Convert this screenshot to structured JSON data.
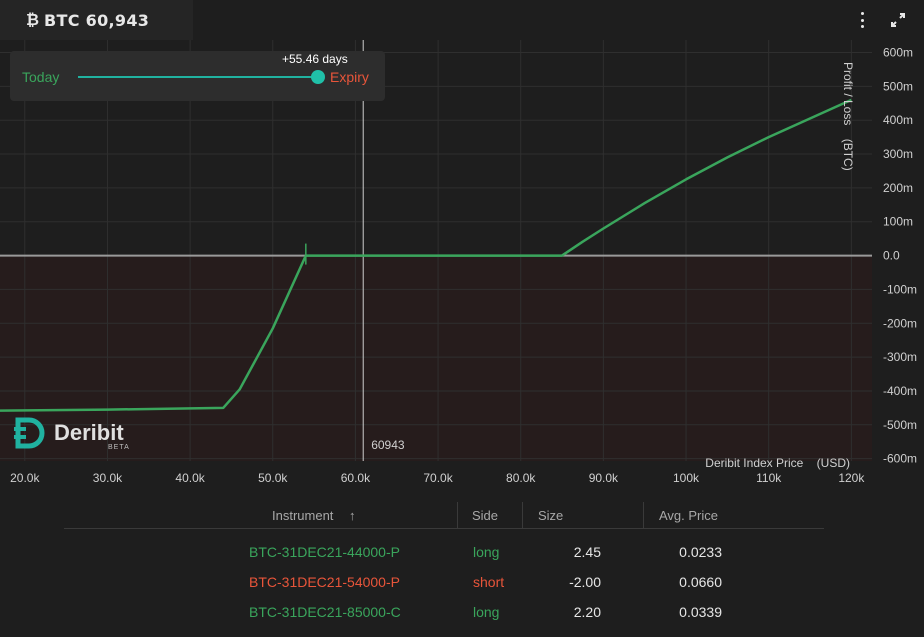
{
  "header": {
    "ticker_icon": "bitcoin-icon",
    "ticker_label": "BTC 60,943"
  },
  "timeline": {
    "left_label": "Today",
    "right_label": "Expiry",
    "days_label": "+55.46 days",
    "position_fraction": 1.0
  },
  "chart_data": {
    "type": "line",
    "title": "",
    "xlabel": "Deribit Index Price    (USD)",
    "ylabel": "Profit / Loss    (BTC)",
    "xlim": [
      17000,
      122500
    ],
    "ylim": [
      -600,
      600
    ],
    "ylim_plot": [
      -607,
      637
    ],
    "x_ticks": [
      20000,
      30000,
      40000,
      50000,
      60000,
      70000,
      80000,
      90000,
      100000,
      110000,
      120000
    ],
    "x_tick_labels": [
      "20.0k",
      "30.0k",
      "40.0k",
      "50.0k",
      "60.0k",
      "70.0k",
      "80.0k",
      "90.0k",
      "100k",
      "110k",
      "120k"
    ],
    "y_ticks": [
      600,
      500,
      400,
      300,
      200,
      100,
      0,
      -100,
      -200,
      -300,
      -400,
      -500,
      -600
    ],
    "y_tick_labels": [
      "600m",
      "500m",
      "400m",
      "300m",
      "200m",
      "100m",
      "0.0",
      "-100m",
      "-200m",
      "-300m",
      "-400m",
      "-500m",
      "-600m"
    ],
    "grid": true,
    "current_price": 60943,
    "current_price_label": "60943",
    "series": [
      {
        "x": [
          17000,
          30000,
          44000,
          46000,
          50000,
          54000,
          60000,
          70000,
          80000,
          85000,
          87500,
          90000,
          95000,
          100000,
          105000,
          110000,
          115000,
          120000
        ],
        "y": [
          -458,
          -455,
          -450,
          -395,
          -215,
          0,
          0,
          0,
          0,
          0,
          41,
          80,
          155,
          225,
          290,
          350,
          405,
          460
        ]
      }
    ],
    "colors": {
      "line": "#3aa55c",
      "loss_area": "#261c1c",
      "profit_area": "#1e1e1e",
      "zero_line": "#9a9a9a",
      "cursor_line": "#cfcfcf"
    }
  },
  "watermark": {
    "name": "Deribit",
    "tag": "BETA"
  },
  "positions": {
    "headers": {
      "instrument": "Instrument",
      "sort_icon": "↑",
      "side": "Side",
      "size": "Size",
      "avg_price": "Avg. Price"
    },
    "rows": [
      {
        "instrument": "BTC-31DEC21-44000-P",
        "side": "long",
        "size": "2.45",
        "avg_price": "0.0233"
      },
      {
        "instrument": "BTC-31DEC21-54000-P",
        "side": "short",
        "size": "-2.00",
        "avg_price": "0.0660"
      },
      {
        "instrument": "BTC-31DEC21-85000-C",
        "side": "long",
        "size": "2.20",
        "avg_price": "0.0339"
      }
    ]
  }
}
